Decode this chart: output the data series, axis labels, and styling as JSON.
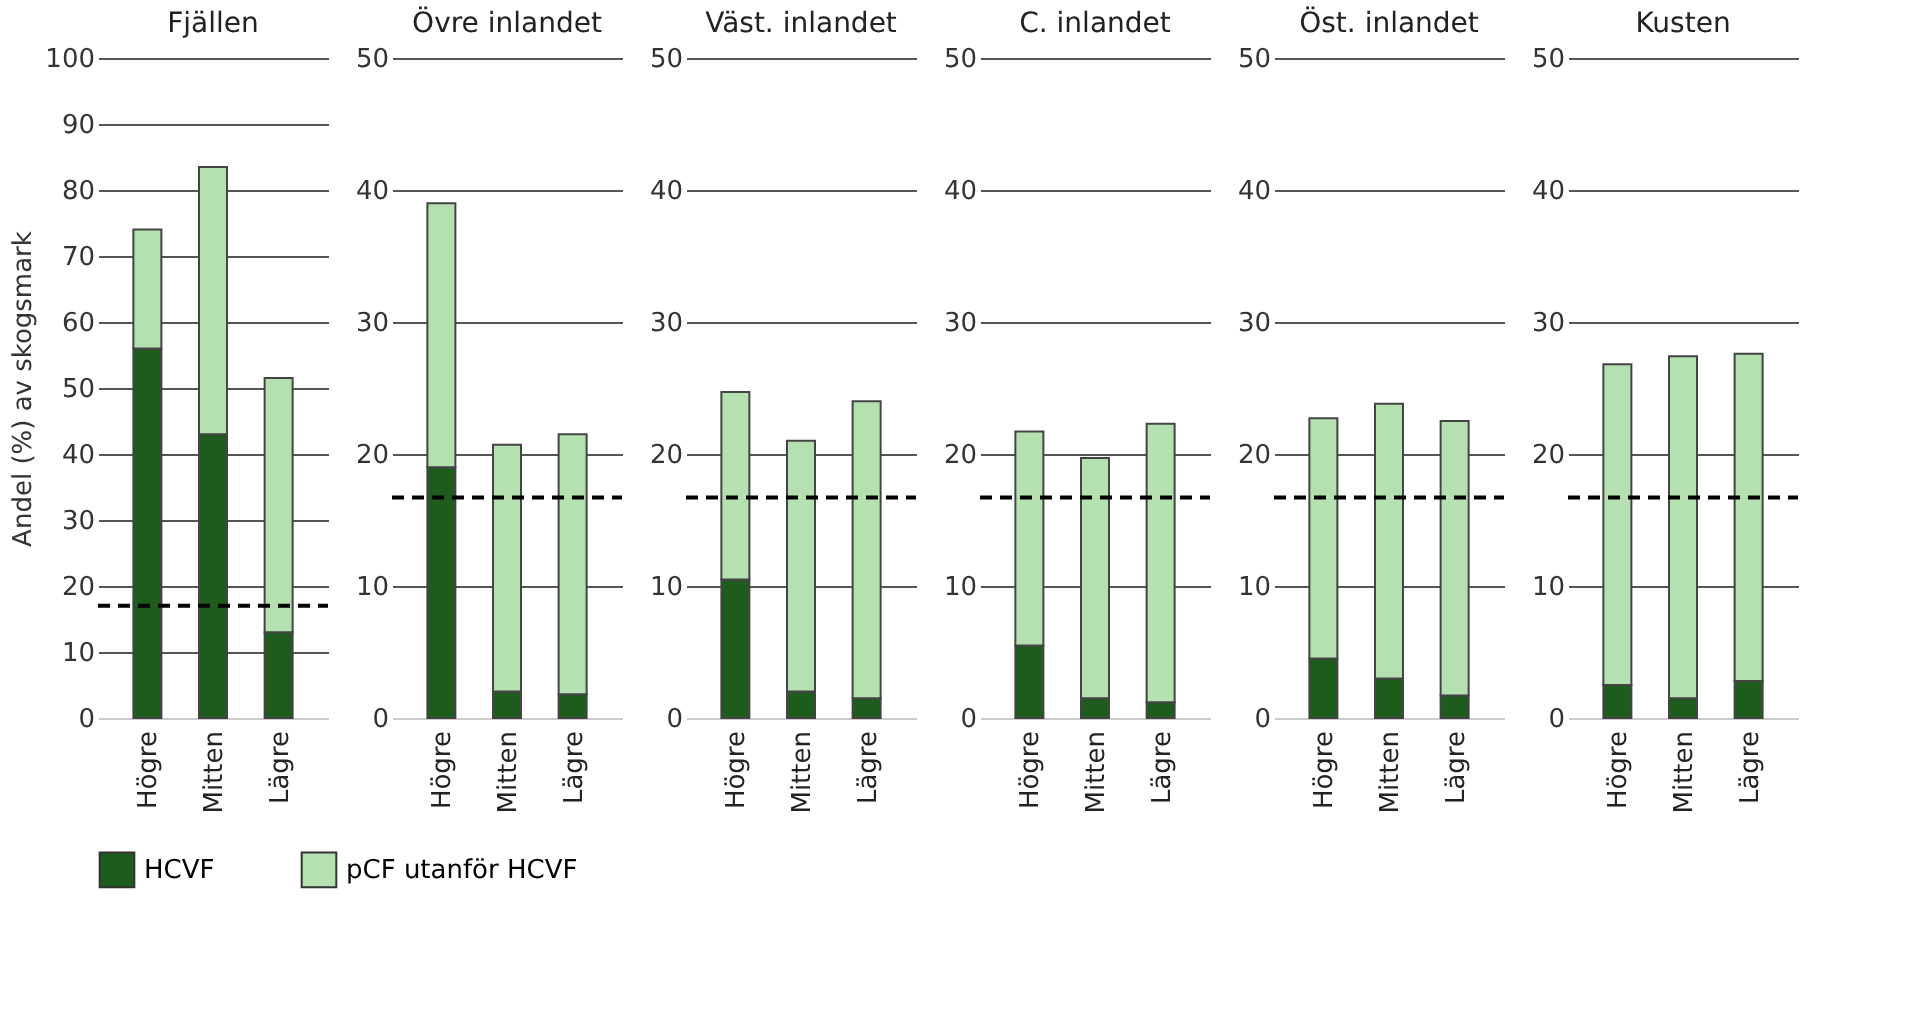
{
  "chart_data": [
    {
      "type": "bar",
      "stacked": true,
      "title": "Fjällen",
      "ylabel": "Andel (%) av skogsmark",
      "categories": [
        "Högre",
        "Mitten",
        "Lägre"
      ],
      "ylim": [
        0,
        100
      ],
      "yticks": [
        0,
        10,
        20,
        30,
        40,
        50,
        60,
        70,
        80,
        90,
        100
      ],
      "grid": "y",
      "legend": "bottom",
      "series": [
        {
          "name": "HCVF",
          "color": "#1e5c1e",
          "values": [
            56,
            43,
            13
          ]
        },
        {
          "name": "pCF utanför HCVF",
          "color": "#b5e0b0",
          "values": [
            18,
            40.5,
            38.5
          ]
        }
      ],
      "ref_lines": [
        {
          "axis": "y",
          "value": 17,
          "color": "#000000",
          "line_style": "dashed"
        }
      ]
    },
    {
      "type": "bar",
      "stacked": true,
      "title": "Övre inlandet",
      "categories": [
        "Högre",
        "Mitten",
        "Lägre"
      ],
      "ylim": [
        0,
        50
      ],
      "yticks": [
        0,
        10,
        20,
        30,
        40,
        50
      ],
      "grid": "y",
      "series": [
        {
          "color": "#1e5c1e",
          "values": [
            19,
            2,
            1.8
          ]
        },
        {
          "color": "#b5e0b0",
          "values": [
            20,
            18.7,
            19.7
          ]
        }
      ],
      "ref_lines": [
        {
          "axis": "y",
          "value": 16.7,
          "color": "#000000",
          "line_style": "dashed"
        }
      ]
    },
    {
      "type": "bar",
      "stacked": true,
      "title": "Väst. inlandet",
      "categories": [
        "Högre",
        "Mitten",
        "Lägre"
      ],
      "ylim": [
        0,
        50
      ],
      "yticks": [
        0,
        10,
        20,
        30,
        40,
        50
      ],
      "grid": "y",
      "series": [
        {
          "color": "#1e5c1e",
          "values": [
            10.5,
            2,
            1.5
          ]
        },
        {
          "color": "#b5e0b0",
          "values": [
            14.2,
            19,
            22.5
          ]
        }
      ],
      "ref_lines": [
        {
          "axis": "y",
          "value": 16.7,
          "color": "#000000",
          "line_style": "dashed"
        }
      ]
    },
    {
      "type": "bar",
      "stacked": true,
      "title": "C. inlandet",
      "categories": [
        "Högre",
        "Mitten",
        "Lägre"
      ],
      "ylim": [
        0,
        50
      ],
      "yticks": [
        0,
        10,
        20,
        30,
        40,
        50
      ],
      "grid": "y",
      "series": [
        {
          "color": "#1e5c1e",
          "values": [
            5.5,
            1.5,
            1.2
          ]
        },
        {
          "color": "#b5e0b0",
          "values": [
            16.2,
            18.2,
            21.1
          ]
        }
      ],
      "ref_lines": [
        {
          "axis": "y",
          "value": 16.7,
          "color": "#000000",
          "line_style": "dashed"
        }
      ]
    },
    {
      "type": "bar",
      "stacked": true,
      "title": "Öst. inlandet",
      "categories": [
        "Högre",
        "Mitten",
        "Lägre"
      ],
      "ylim": [
        0,
        50
      ],
      "yticks": [
        0,
        10,
        20,
        30,
        40,
        50
      ],
      "grid": "y",
      "series": [
        {
          "color": "#1e5c1e",
          "values": [
            4.5,
            3,
            1.7
          ]
        },
        {
          "color": "#b5e0b0",
          "values": [
            18.2,
            20.8,
            20.8
          ]
        }
      ],
      "ref_lines": [
        {
          "axis": "y",
          "value": 16.7,
          "color": "#000000",
          "line_style": "dashed"
        }
      ]
    },
    {
      "type": "bar",
      "stacked": true,
      "title": "Kusten",
      "categories": [
        "Högre",
        "Mitten",
        "Lägre"
      ],
      "ylim": [
        0,
        50
      ],
      "yticks": [
        0,
        10,
        20,
        30,
        40,
        50
      ],
      "grid": "y",
      "series": [
        {
          "color": "#1e5c1e",
          "values": [
            2.5,
            1.5,
            2.8
          ]
        },
        {
          "color": "#b5e0b0",
          "values": [
            24.3,
            25.9,
            24.8
          ]
        }
      ],
      "ref_lines": [
        {
          "axis": "y",
          "value": 16.7,
          "color": "#000000",
          "line_style": "dashed"
        }
      ]
    }
  ]
}
